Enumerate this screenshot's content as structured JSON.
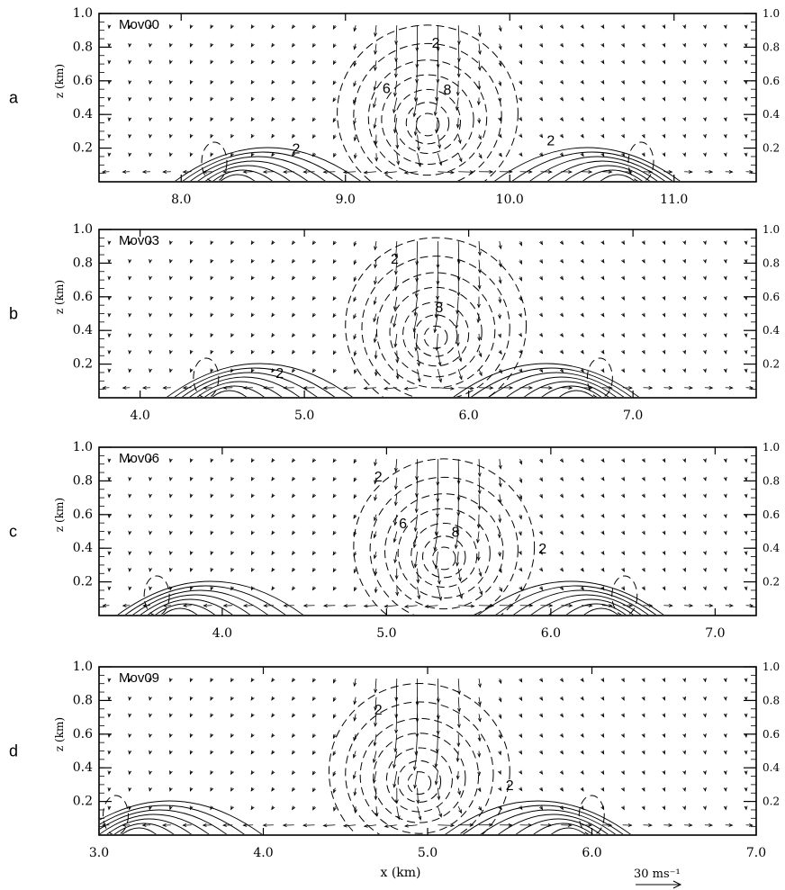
{
  "chart_data": [
    {
      "type": "vector-contour",
      "panel_letter": "a",
      "title": "Mov00",
      "xlabel": "",
      "ylabel": "z (km)",
      "xlim": [
        7.5,
        11.5
      ],
      "ylim": [
        0,
        1.0
      ],
      "x_ticks": [
        8.0,
        9.0,
        10.0,
        11.0
      ],
      "x_tick_labels": [
        "8.0",
        "9.0",
        "10.0",
        "11.0"
      ],
      "y_ticks": [
        0.2,
        0.4,
        0.6,
        0.8,
        1.0
      ],
      "y_tick_labels": [
        "0.2",
        "0.4",
        "0.6",
        "0.8",
        "1.0"
      ],
      "vortex_center": [
        9.5,
        0.33
      ],
      "outflow_fronts": [
        8.3,
        10.7
      ],
      "contour_labels": [
        {
          "text": "2",
          "x": 9.55,
          "y": 0.83
        },
        {
          "text": "6",
          "x": 9.25,
          "y": 0.56
        },
        {
          "text": "8",
          "x": 9.62,
          "y": 0.55
        },
        {
          "text": "2",
          "x": 8.7,
          "y": 0.2
        },
        {
          "text": "2",
          "x": 10.25,
          "y": 0.25
        }
      ]
    },
    {
      "type": "vector-contour",
      "panel_letter": "b",
      "title": "Mov03",
      "xlabel": "",
      "ylabel": "z (km)",
      "xlim": [
        3.75,
        7.75
      ],
      "ylim": [
        0,
        1.0
      ],
      "x_ticks": [
        4.0,
        5.0,
        6.0,
        7.0
      ],
      "x_tick_labels": [
        "4.0",
        "5.0",
        "6.0",
        "7.0"
      ],
      "y_ticks": [
        0.2,
        0.4,
        0.6,
        0.8,
        1.0
      ],
      "y_tick_labels": [
        "0.2",
        "0.4",
        "0.6",
        "0.8",
        "1.0"
      ],
      "vortex_center": [
        5.8,
        0.35
      ],
      "outflow_fronts": [
        4.5,
        6.7
      ],
      "contour_labels": [
        {
          "text": "2",
          "x": 5.55,
          "y": 0.83
        },
        {
          "text": "8",
          "x": 5.82,
          "y": 0.54
        },
        {
          "text": "2",
          "x": 4.85,
          "y": 0.15
        }
      ]
    },
    {
      "type": "vector-contour",
      "panel_letter": "c",
      "title": "Mov06",
      "xlabel": "",
      "ylabel": "z (km)",
      "xlim": [
        3.25,
        7.25
      ],
      "ylim": [
        0,
        1.0
      ],
      "x_ticks": [
        4.0,
        5.0,
        6.0,
        7.0
      ],
      "x_tick_labels": [
        "4.0",
        "5.0",
        "6.0",
        "7.0"
      ],
      "y_ticks": [
        0.2,
        0.4,
        0.6,
        0.8,
        1.0
      ],
      "y_tick_labels": [
        "0.2",
        "0.4",
        "0.6",
        "0.8",
        "1.0"
      ],
      "vortex_center": [
        5.35,
        0.33
      ],
      "outflow_fronts": [
        3.7,
        6.35
      ],
      "contour_labels": [
        {
          "text": "2",
          "x": 4.95,
          "y": 0.83
        },
        {
          "text": "6",
          "x": 5.1,
          "y": 0.55
        },
        {
          "text": "8",
          "x": 5.42,
          "y": 0.5
        },
        {
          "text": "2",
          "x": 5.95,
          "y": 0.4
        }
      ]
    },
    {
      "type": "vector-contour",
      "panel_letter": "d",
      "title": "Mov09",
      "xlabel": "x (km)",
      "ylabel": "z (km)",
      "xlim": [
        3.0,
        7.0
      ],
      "ylim": [
        0,
        1.0
      ],
      "x_ticks": [
        3.0,
        4.0,
        5.0,
        6.0,
        7.0
      ],
      "x_tick_labels": [
        "3.0",
        "4.0",
        "5.0",
        "6.0",
        "7.0"
      ],
      "y_ticks": [
        0.2,
        0.4,
        0.6,
        0.8,
        1.0
      ],
      "y_tick_labels": [
        "0.2",
        "0.4",
        "0.6",
        "0.8",
        "1.0"
      ],
      "vortex_center": [
        4.95,
        0.3
      ],
      "outflow_fronts": [
        3.2,
        5.9
      ],
      "contour_labels": [
        {
          "text": "2",
          "x": 4.7,
          "y": 0.75
        },
        {
          "text": "2",
          "x": 5.5,
          "y": 0.3
        }
      ]
    }
  ],
  "reference_vector": {
    "label": "30 ms⁻¹"
  }
}
